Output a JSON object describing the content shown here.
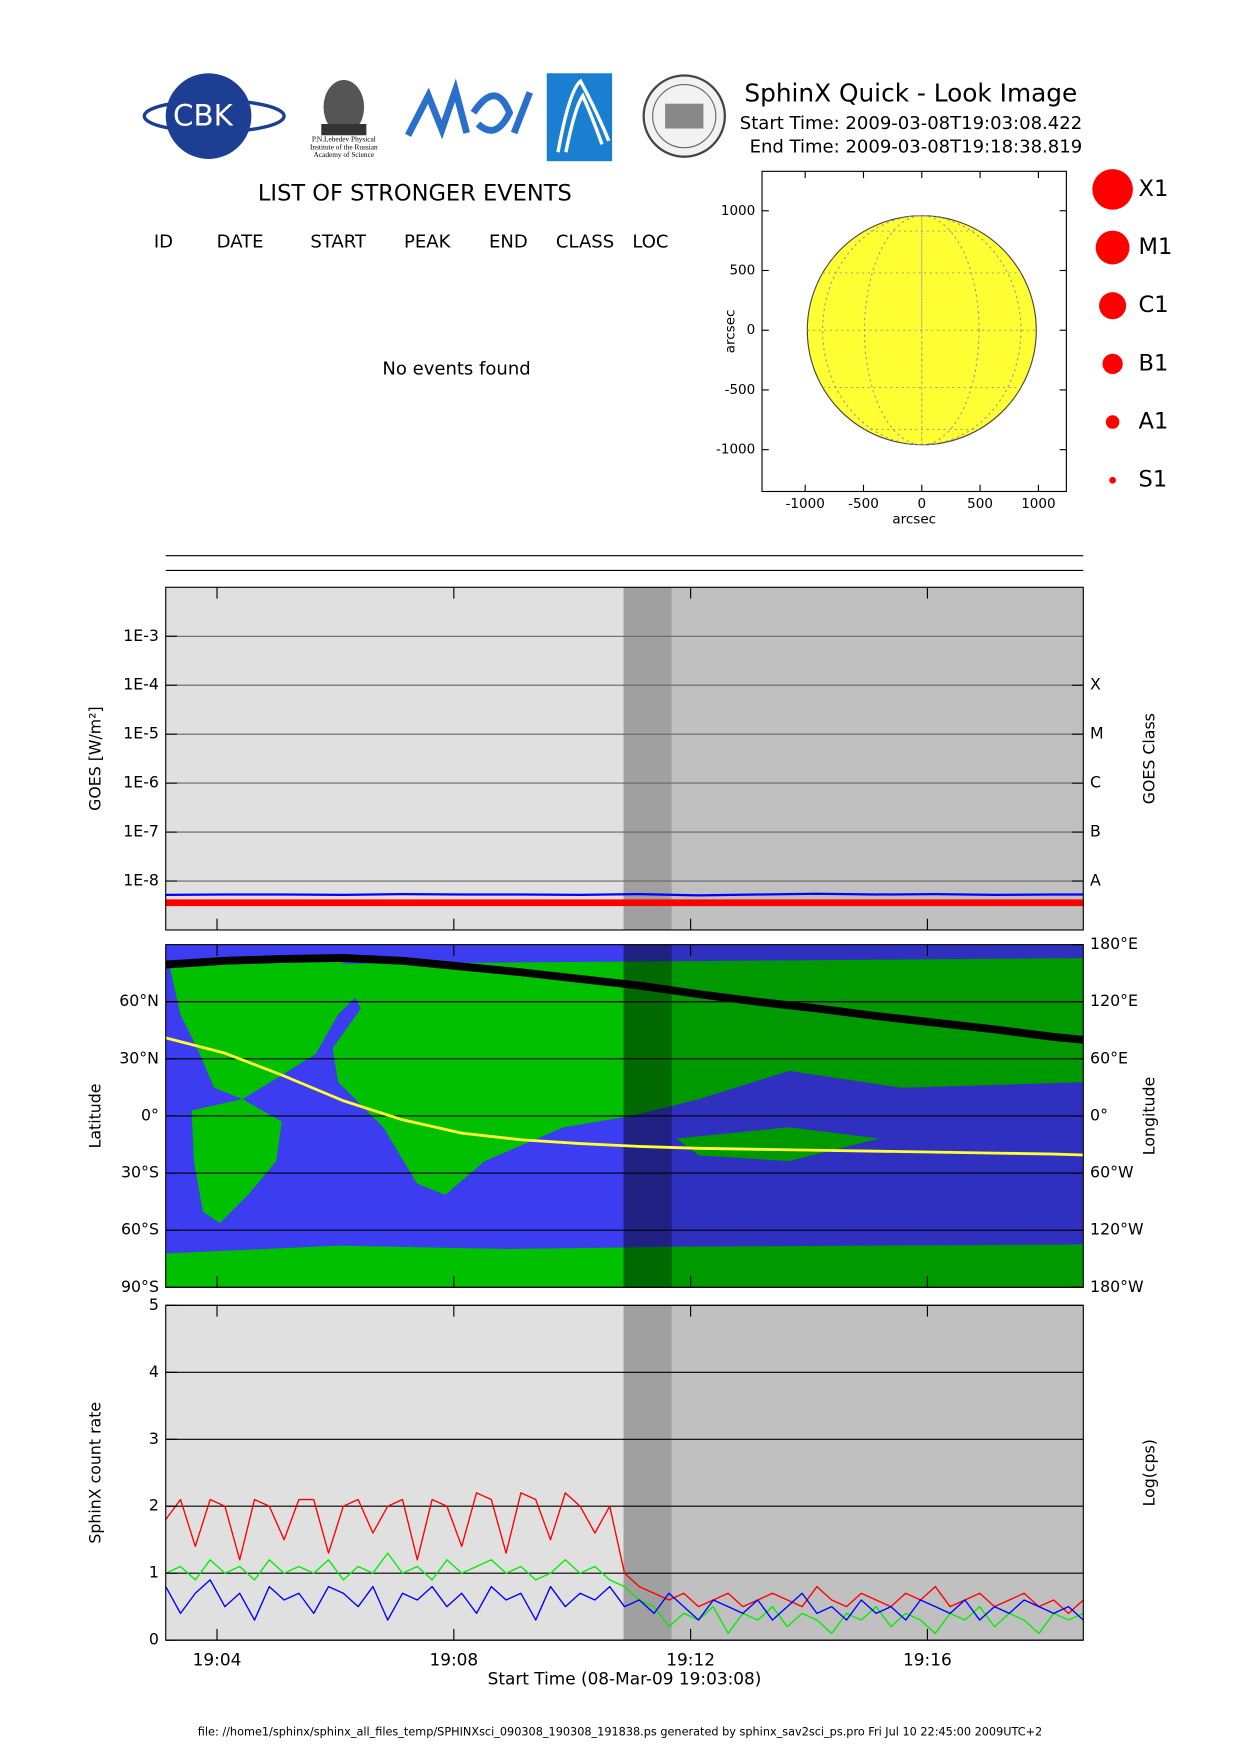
{
  "header": {
    "title": "SphinX Quick - Look Image",
    "start_time": "Start Time: 2009-03-08T19:03:08.422",
    "end_time": "End Time: 2009-03-08T19:18:38.819",
    "logo_text": "CBK",
    "institute": [
      "P.N.Lebedev Physical",
      "Institute of the Russian",
      "Academy of Science"
    ]
  },
  "events": {
    "title": "LIST OF STRONGER EVENTS",
    "columns": [
      "ID",
      "DATE",
      "START",
      "PEAK",
      "END",
      "CLASS",
      "LOC"
    ],
    "message": "No events found"
  },
  "flare_classes": [
    "X1",
    "M1",
    "C1",
    "B1",
    "A1",
    "S1"
  ],
  "footer": "file: //home1/sphinx/sphinx_all_files_temp/SPHINXsci_090308_190308_191838.ps generated by sphinx_sav2sci_ps.pro Fri Jul 10 22:45:00 2009UTC+2",
  "chart_data": [
    {
      "type": "disk",
      "radius": 970,
      "color": "#ffff33",
      "xlim": [
        -1370,
        1240
      ],
      "ylim": [
        -1350,
        1330
      ],
      "xticks": [
        -1000,
        -500,
        0,
        500,
        1000
      ],
      "yticks": [
        -1000,
        -500,
        0,
        500,
        1000
      ],
      "xlabel": "arcsec",
      "ylabel": "arcsec"
    },
    {
      "type": "line",
      "log_y": true,
      "grid": true,
      "ylabel": "GOES [W/m²]",
      "y2label": "GOES Class",
      "xlim": [
        "19:03:08",
        "19:18:38"
      ],
      "ylim": [
        1e-09,
        0.01
      ],
      "y2lim": [
        1e-09,
        0.01
      ],
      "yticks": [
        {
          "value": 1e-08,
          "label": "1E-8"
        },
        {
          "value": 1e-07,
          "label": "1E-7"
        },
        {
          "value": 1e-06,
          "label": "1E-6"
        },
        {
          "value": 1e-05,
          "label": "1E-5"
        },
        {
          "value": 0.0001,
          "label": "1E-4"
        },
        {
          "value": 0.001,
          "label": "1E-3"
        }
      ],
      "y2ticks": [
        {
          "value": 1e-08,
          "label": "A"
        },
        {
          "value": 1e-07,
          "label": "B"
        },
        {
          "value": 1e-06,
          "label": "C"
        },
        {
          "value": 1e-05,
          "label": "M"
        },
        {
          "value": 0.0001,
          "label": "X"
        }
      ],
      "regions": [
        {
          "start": "19:03:08",
          "end": "19:10:52",
          "color": "#e0e0e0"
        },
        {
          "start": "19:10:52",
          "end": "19:11:41",
          "color": "#a0a0a0"
        },
        {
          "start": "19:11:41",
          "end": "19:18:38",
          "color": "#c0c0c0"
        }
      ],
      "x": [
        "19:03:08",
        "19:04:08",
        "19:05:08",
        "19:06:08",
        "19:07:08",
        "19:08:08",
        "19:09:08",
        "19:10:08",
        "19:11:08",
        "19:12:08",
        "19:13:08",
        "19:14:08",
        "19:15:08",
        "19:16:08",
        "19:17:08",
        "19:18:08",
        "19:18:38"
      ],
      "series": [
        {
          "color": "#0000ff",
          "width": 2,
          "values": [
            5.2e-09,
            5.3e-09,
            5.3e-09,
            5.2e-09,
            5.4e-09,
            5.3e-09,
            5.3e-09,
            5.2e-09,
            5.4e-09,
            5.1e-09,
            5.3e-09,
            5.5e-09,
            5.3e-09,
            5.4e-09,
            5.2e-09,
            5.3e-09,
            5.3e-09
          ]
        },
        {
          "color": "#ff0000",
          "width": 6,
          "values": [
            3.6e-09,
            3.6e-09,
            3.6e-09,
            3.6e-09,
            3.6e-09,
            3.6e-09,
            3.6e-09,
            3.6e-09,
            3.6e-09,
            3.6e-09,
            3.6e-09,
            3.6e-09,
            3.6e-09,
            3.6e-09,
            3.6e-09,
            3.6e-09,
            3.6e-09
          ]
        }
      ]
    },
    {
      "type": "map",
      "ylabel": "Latitude",
      "y2label": "Longitude",
      "grid": true,
      "xlim": [
        "19:03:08",
        "19:18:38"
      ],
      "ylim": [
        -90,
        90
      ],
      "y2lim": [
        -180,
        180
      ],
      "yticks": [
        {
          "value": -90,
          "label": "90°S"
        },
        {
          "value": -60,
          "label": "60°S"
        },
        {
          "value": -30,
          "label": "30°S"
        },
        {
          "value": 0,
          "label": "0°"
        },
        {
          "value": 30,
          "label": "30°N"
        },
        {
          "value": 60,
          "label": "60°N"
        }
      ],
      "y2ticks": [
        {
          "value": -180,
          "label": "180°W"
        },
        {
          "value": -120,
          "label": "120°W"
        },
        {
          "value": -60,
          "label": "60°W"
        },
        {
          "value": 0,
          "label": "0°"
        },
        {
          "value": 60,
          "label": "60°E"
        },
        {
          "value": 120,
          "label": "120°E"
        },
        {
          "value": 180,
          "label": "180°E"
        }
      ],
      "regions": [
        {
          "start": "19:10:52",
          "end": "19:11:41",
          "color": "#000000",
          "opacity": 0.45
        },
        {
          "start": "19:11:41",
          "end": "19:18:38",
          "color": "#000000",
          "opacity": 0.2
        }
      ],
      "x": [
        "19:03:08",
        "19:04:08",
        "19:05:08",
        "19:06:08",
        "19:07:08",
        "19:08:08",
        "19:09:08",
        "19:10:08",
        "19:11:08",
        "19:12:08",
        "19:13:08",
        "19:14:08",
        "19:15:08",
        "19:16:08",
        "19:17:08",
        "19:18:08",
        "19:18:38"
      ],
      "series": [
        {
          "color": "#ffff33",
          "width": 2.5,
          "values": [
            41,
            33,
            21,
            8,
            -2,
            -9,
            -12.5,
            -14.5,
            -16,
            -17,
            -17.5,
            -18,
            -18.5,
            -19,
            -19.5,
            -20,
            -20.5
          ]
        },
        {
          "color": "#000000",
          "width": 7,
          "axis": "y2",
          "values": [
            159,
            163,
            165,
            166,
            163,
            157,
            151,
            144,
            137,
            128,
            120,
            113,
            105,
            98,
            91,
            83,
            80
          ]
        }
      ]
    },
    {
      "type": "line",
      "grid": true,
      "ylabel": "SphinX count rate",
      "y2label": "Log(cps)",
      "xlabel": "Start Time (08-Mar-09 19:03:08)",
      "xlim": [
        "19:03:08",
        "19:18:38"
      ],
      "ylim": [
        0,
        5
      ],
      "yticks": [
        0,
        1,
        2,
        3,
        4,
        5
      ],
      "xticks": [
        {
          "value": "19:04:00",
          "label": "19:04"
        },
        {
          "value": "19:08:00",
          "label": "19:08"
        },
        {
          "value": "19:12:00",
          "label": "19:12"
        },
        {
          "value": "19:16:00",
          "label": "19:16"
        }
      ],
      "regions": [
        {
          "start": "19:03:08",
          "end": "19:10:52",
          "color": "#e0e0e0"
        },
        {
          "start": "19:10:52",
          "end": "19:11:41",
          "color": "#a0a0a0"
        },
        {
          "start": "19:11:41",
          "end": "19:18:38",
          "color": "#c0c0c0"
        }
      ],
      "x": [
        "19:03:08",
        "19:03:23",
        "19:03:38",
        "19:03:53",
        "19:04:08",
        "19:04:23",
        "19:04:38",
        "19:04:53",
        "19:05:08",
        "19:05:23",
        "19:05:38",
        "19:05:53",
        "19:06:08",
        "19:06:23",
        "19:06:38",
        "19:06:53",
        "19:07:08",
        "19:07:23",
        "19:07:38",
        "19:07:53",
        "19:08:08",
        "19:08:23",
        "19:08:38",
        "19:08:53",
        "19:09:08",
        "19:09:23",
        "19:09:38",
        "19:09:53",
        "19:10:08",
        "19:10:23",
        "19:10:38",
        "19:10:53",
        "19:11:08",
        "19:11:23",
        "19:11:38",
        "19:11:53",
        "19:12:08",
        "19:12:23",
        "19:12:38",
        "19:12:53",
        "19:13:08",
        "19:13:23",
        "19:13:38",
        "19:13:53",
        "19:14:08",
        "19:14:23",
        "19:14:38",
        "19:14:53",
        "19:15:08",
        "19:15:23",
        "19:15:38",
        "19:15:53",
        "19:16:08",
        "19:16:23",
        "19:16:38",
        "19:16:53",
        "19:17:08",
        "19:17:23",
        "19:17:38",
        "19:17:53",
        "19:18:08",
        "19:18:23",
        "19:18:38"
      ],
      "series": [
        {
          "color": "#ff0000",
          "width": 1.2,
          "values": [
            1.8,
            2.1,
            1.4,
            2.1,
            2.0,
            1.2,
            2.1,
            2.0,
            1.5,
            2.1,
            2.1,
            1.3,
            2.0,
            2.1,
            1.6,
            2.0,
            2.1,
            1.2,
            2.1,
            2.0,
            1.4,
            2.2,
            2.1,
            1.3,
            2.2,
            2.1,
            1.5,
            2.2,
            2.0,
            1.6,
            2.0,
            1.0,
            0.8,
            0.7,
            0.6,
            0.7,
            0.5,
            0.6,
            0.7,
            0.5,
            0.6,
            0.7,
            0.6,
            0.5,
            0.8,
            0.6,
            0.5,
            0.7,
            0.6,
            0.5,
            0.7,
            0.6,
            0.8,
            0.5,
            0.6,
            0.7,
            0.5,
            0.6,
            0.7,
            0.5,
            0.6,
            0.4,
            0.6
          ]
        },
        {
          "color": "#00ee00",
          "width": 1.2,
          "values": [
            1.0,
            1.1,
            0.9,
            1.2,
            1.0,
            1.1,
            0.9,
            1.2,
            1.0,
            1.1,
            1.0,
            1.2,
            0.9,
            1.1,
            1.0,
            1.3,
            1.0,
            1.1,
            0.9,
            1.2,
            1.0,
            1.1,
            1.2,
            1.0,
            1.1,
            0.9,
            1.0,
            1.2,
            1.0,
            1.1,
            0.9,
            0.8,
            0.6,
            0.5,
            0.2,
            0.4,
            0.3,
            0.5,
            0.1,
            0.4,
            0.3,
            0.5,
            0.2,
            0.4,
            0.3,
            0.1,
            0.4,
            0.3,
            0.5,
            0.2,
            0.4,
            0.3,
            0.1,
            0.4,
            0.3,
            0.5,
            0.2,
            0.4,
            0.3,
            0.1,
            0.4,
            0.3,
            0.4
          ]
        },
        {
          "color": "#0000ff",
          "width": 1.2,
          "values": [
            0.8,
            0.4,
            0.7,
            0.9,
            0.5,
            0.7,
            0.3,
            0.8,
            0.6,
            0.7,
            0.4,
            0.8,
            0.7,
            0.5,
            0.8,
            0.3,
            0.7,
            0.6,
            0.8,
            0.5,
            0.7,
            0.4,
            0.8,
            0.6,
            0.7,
            0.3,
            0.8,
            0.5,
            0.7,
            0.6,
            0.8,
            0.5,
            0.6,
            0.4,
            0.7,
            0.5,
            0.3,
            0.6,
            0.5,
            0.4,
            0.6,
            0.3,
            0.5,
            0.7,
            0.4,
            0.5,
            0.3,
            0.6,
            0.4,
            0.5,
            0.3,
            0.6,
            0.5,
            0.4,
            0.6,
            0.3,
            0.5,
            0.4,
            0.6,
            0.5,
            0.4,
            0.5,
            0.3
          ]
        }
      ]
    }
  ]
}
